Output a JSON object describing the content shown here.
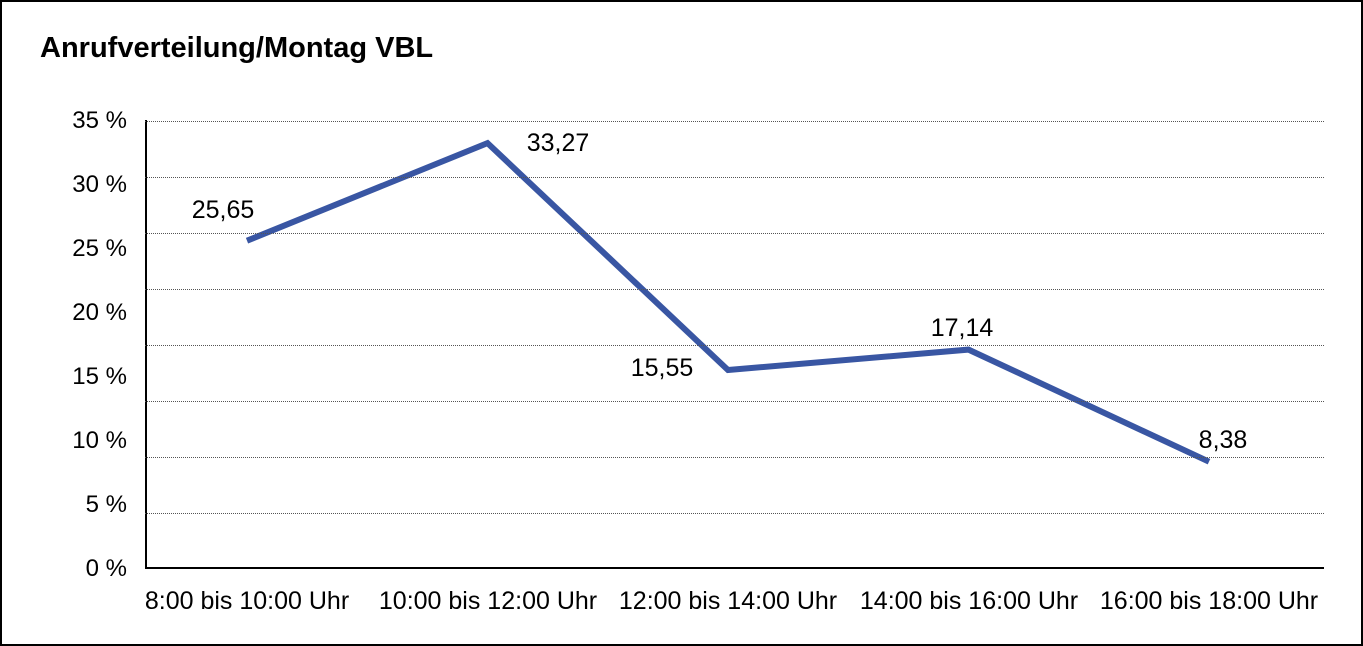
{
  "frame": {
    "background": "#FFFFFF",
    "border_color": "#000000"
  },
  "chart_data": {
    "type": "line",
    "title": "Anrufverteilung/Montag VBL",
    "categories": [
      "8:00 bis 10:00 Uhr",
      "10:00 bis 12:00 Uhr",
      "12:00 bis 14:00 Uhr",
      "14:00 bis 16:00 Uhr",
      "16:00 bis 18:00 Uhr"
    ],
    "values": [
      25.65,
      33.27,
      15.55,
      17.14,
      8.38
    ],
    "value_labels": [
      "25,65",
      "33,27",
      "15,55",
      "17,14",
      "8,38"
    ],
    "y_tick_labels": [
      "35 %",
      "30 %",
      "25 %",
      "20 %",
      "15 %",
      "10 %",
      "5 %",
      "0 %"
    ],
    "ylim": [
      0,
      35
    ],
    "xlabel": "",
    "ylabel": "",
    "grid": "horizontal-dotted",
    "legend": "none",
    "colors": {
      "line": "#3956A3",
      "axis": "#000000",
      "grid_dots": "#555555",
      "text": "#000000"
    }
  }
}
